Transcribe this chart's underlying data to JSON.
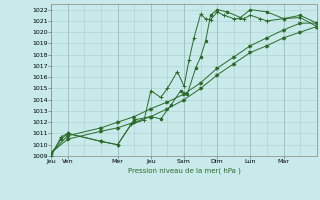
{
  "bg_color": "#c8eaea",
  "grid_color_minor": "#b0cccc",
  "grid_color_major": "#9ab8b8",
  "line_color": "#2a6b2a",
  "ylabel_text": "Pression niveau de la mer( hPa )",
  "ylim": [
    1009,
    1022.5
  ],
  "yticks": [
    1009,
    1010,
    1011,
    1012,
    1013,
    1014,
    1015,
    1016,
    1017,
    1018,
    1019,
    1020,
    1021,
    1022
  ],
  "xlim": [
    0,
    8.0
  ],
  "xtick_positions": [
    0,
    0.5,
    2.0,
    3.0,
    4.0,
    5.0,
    6.0,
    7.0,
    8.0
  ],
  "xtick_labels": [
    "Jeu",
    "Ven",
    "Mer",
    "Jeu",
    "Sam",
    "Dim",
    "Lun",
    "Mar",
    ""
  ],
  "series1_x": [
    0,
    0.3,
    0.5,
    1.5,
    2.0,
    2.4,
    2.8,
    3.0,
    3.3,
    3.5,
    3.8,
    4.0,
    4.15,
    4.3,
    4.5,
    4.65,
    4.8,
    5.0,
    5.2,
    5.5,
    5.8,
    6.0,
    6.3,
    6.5,
    7.0,
    7.5,
    8.0
  ],
  "series1_y": [
    1009,
    1010.7,
    1011.0,
    1010.3,
    1010.0,
    1011.8,
    1012.2,
    1014.8,
    1014.2,
    1015.0,
    1016.5,
    1015.2,
    1017.5,
    1019.5,
    1021.6,
    1021.2,
    1021.1,
    1021.8,
    1021.5,
    1021.2,
    1021.2,
    1021.5,
    1021.2,
    1021.0,
    1021.2,
    1021.3,
    1020.5
  ],
  "series2_x": [
    0,
    0.3,
    0.5,
    1.5,
    2.0,
    2.5,
    3.0,
    3.3,
    3.6,
    3.9,
    4.1,
    4.35,
    4.5,
    4.65,
    4.8,
    5.0,
    5.3,
    5.7,
    6.0,
    6.5,
    7.0,
    7.5,
    8.0
  ],
  "series2_y": [
    1009.2,
    1010.5,
    1011.0,
    1010.3,
    1010.0,
    1012.2,
    1012.5,
    1012.3,
    1013.5,
    1014.8,
    1014.5,
    1016.8,
    1017.8,
    1019.2,
    1021.5,
    1022.0,
    1021.8,
    1021.3,
    1022.0,
    1021.8,
    1021.2,
    1021.5,
    1020.8
  ],
  "series3_x": [
    0,
    0.5,
    1.5,
    2.0,
    2.5,
    3.0,
    3.5,
    4.0,
    4.5,
    5.0,
    5.5,
    6.0,
    6.5,
    7.0,
    7.5,
    8.0
  ],
  "series3_y": [
    1009.3,
    1010.8,
    1011.5,
    1012.0,
    1012.5,
    1013.2,
    1013.8,
    1014.5,
    1015.5,
    1016.8,
    1017.8,
    1018.8,
    1019.5,
    1020.2,
    1020.8,
    1020.8
  ],
  "series4_x": [
    0,
    0.5,
    1.5,
    2.0,
    2.5,
    3.0,
    3.5,
    4.0,
    4.5,
    5.0,
    5.5,
    6.0,
    6.5,
    7.0,
    7.5,
    8.0
  ],
  "series4_y": [
    1009.3,
    1010.5,
    1011.2,
    1011.5,
    1012.0,
    1012.5,
    1013.2,
    1014.0,
    1015.0,
    1016.2,
    1017.2,
    1018.2,
    1018.8,
    1019.5,
    1020.0,
    1020.5
  ]
}
